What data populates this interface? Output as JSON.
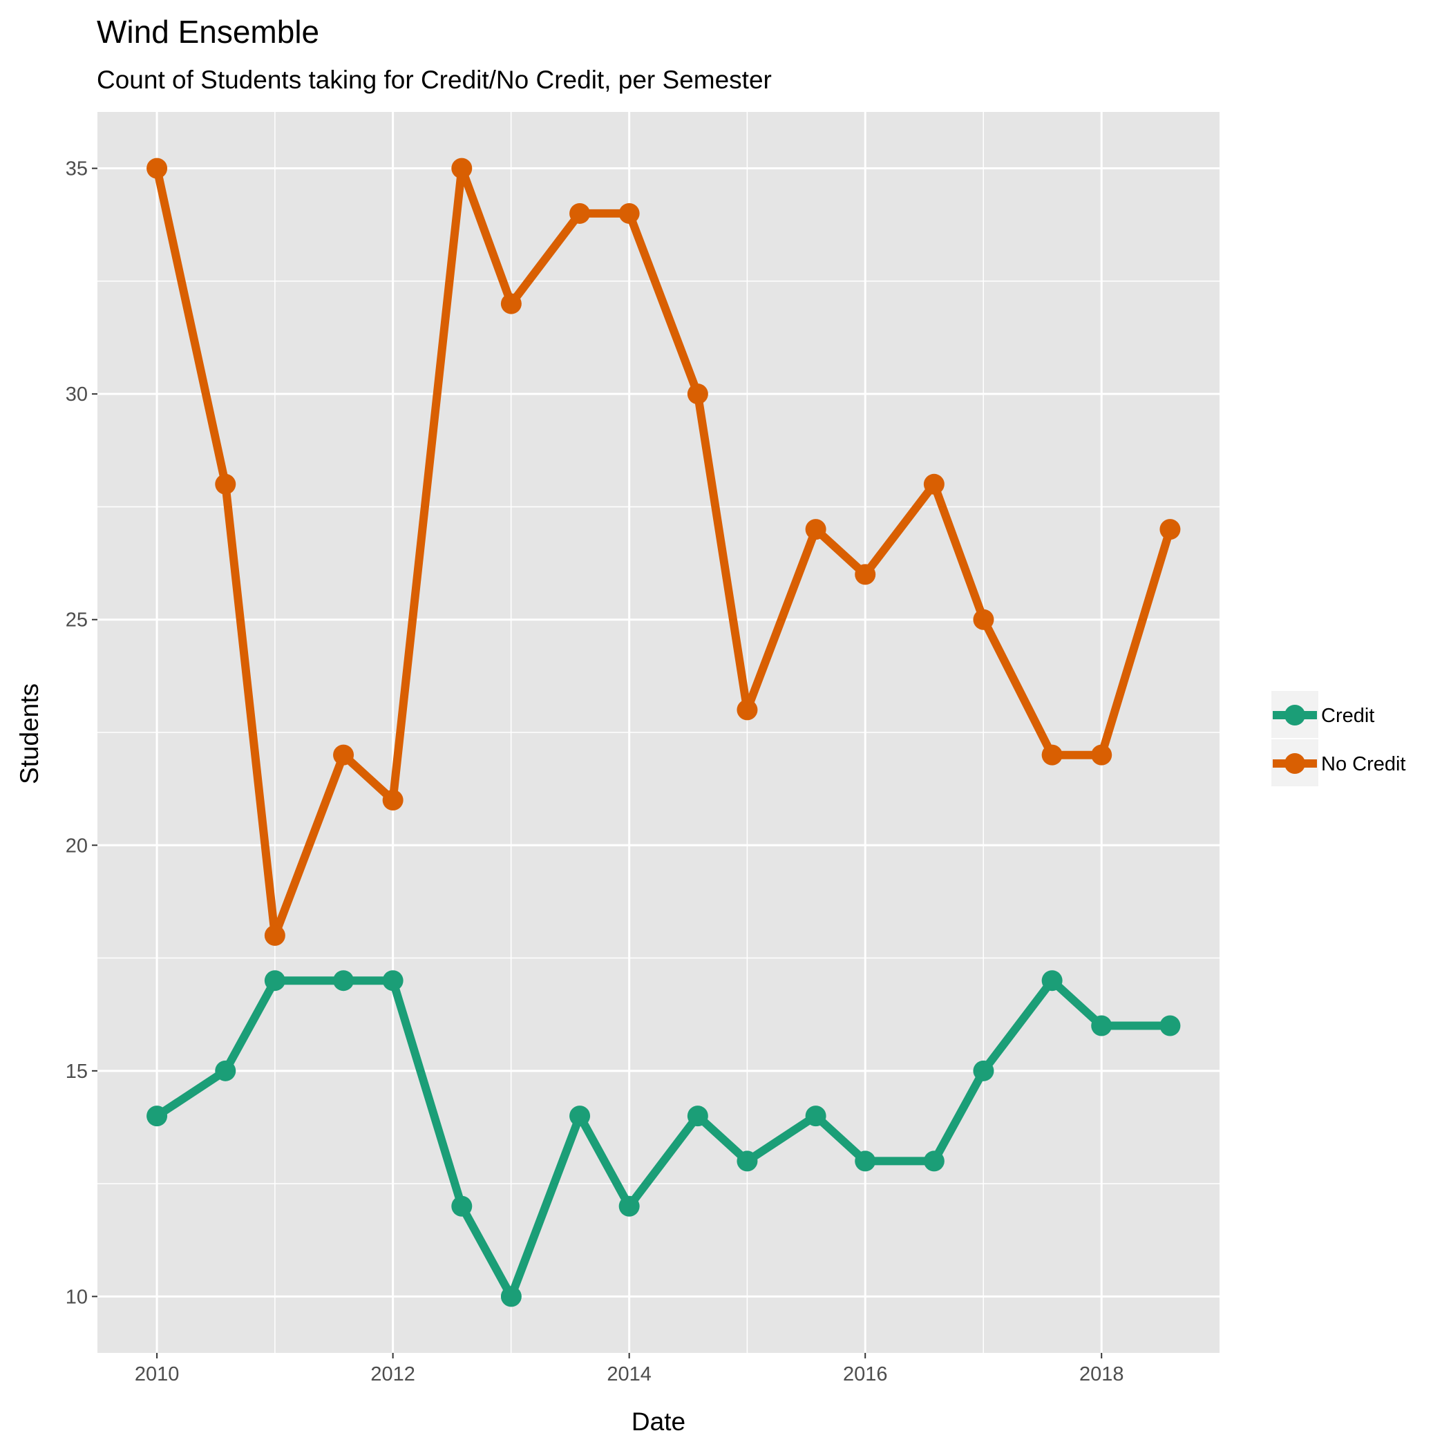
{
  "chart_data": {
    "type": "line",
    "title": "Wind Ensemble",
    "subtitle": "Count of Students taking for Credit/No Credit, per Semester",
    "xlabel": "Date",
    "ylabel": "Students",
    "x": [
      "2010-01-01",
      "2010-08-01",
      "2011-01-01",
      "2011-08-01",
      "2012-01-01",
      "2012-08-01",
      "2013-01-01",
      "2013-08-01",
      "2014-01-01",
      "2014-08-01",
      "2015-01-01",
      "2015-08-01",
      "2016-01-01",
      "2016-08-01",
      "2017-01-01",
      "2017-08-01",
      "2018-01-01",
      "2018-08-01"
    ],
    "series": [
      {
        "name": "Credit",
        "color": "#1b9e77",
        "values": [
          14,
          15,
          17,
          17,
          17,
          12,
          10,
          14,
          12,
          14,
          13,
          14,
          13,
          13,
          15,
          17,
          16,
          16
        ]
      },
      {
        "name": "No Credit",
        "color": "#d95f02",
        "values": [
          35,
          28,
          18,
          22,
          21,
          35,
          32,
          34,
          34,
          30,
          23,
          27,
          26,
          28,
          25,
          22,
          22,
          27
        ]
      }
    ],
    "xlim": [
      "2009-07-01",
      "2019-01-01"
    ],
    "ylim": [
      8.75,
      36.25
    ],
    "x_ticks": [
      "2010",
      "2012",
      "2014",
      "2016",
      "2018"
    ],
    "y_ticks": [
      "10",
      "15",
      "20",
      "25",
      "30",
      "35"
    ],
    "grid": true,
    "legend_position": "right",
    "panel_color": "#e5e5e5",
    "grid_color": "#ffffff"
  }
}
